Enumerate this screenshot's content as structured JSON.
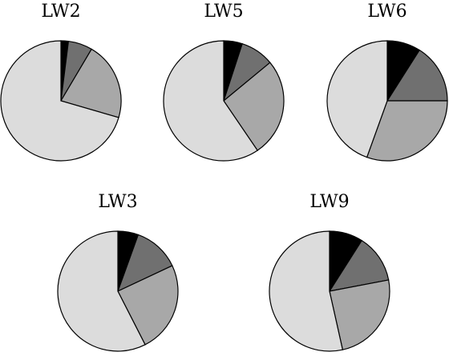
{
  "chart_data": [
    {
      "type": "pie",
      "title": "LW2",
      "categories": [
        "light",
        "medium",
        "dark",
        "black"
      ],
      "values": [
        70.5,
        21.0,
        6.5,
        2.0
      ]
    },
    {
      "type": "pie",
      "title": "LW5",
      "categories": [
        "light",
        "medium",
        "dark",
        "black"
      ],
      "values": [
        59.5,
        26.5,
        9.0,
        5.0
      ]
    },
    {
      "type": "pie",
      "title": "LW6",
      "categories": [
        "light",
        "medium",
        "dark",
        "black"
      ],
      "values": [
        44.5,
        30.5,
        16.0,
        9.0
      ]
    },
    {
      "type": "pie",
      "title": "LW3",
      "categories": [
        "light",
        "medium",
        "dark",
        "black"
      ],
      "values": [
        57.5,
        24.5,
        12.5,
        5.5
      ]
    },
    {
      "type": "pie",
      "title": "LW9",
      "categories": [
        "light",
        "medium",
        "dark",
        "black"
      ],
      "values": [
        53.5,
        24.5,
        13.0,
        9.0
      ]
    }
  ],
  "colors": {
    "light": "#dcdcdc",
    "medium": "#a8a8a8",
    "dark": "#707070",
    "black": "#000000"
  }
}
